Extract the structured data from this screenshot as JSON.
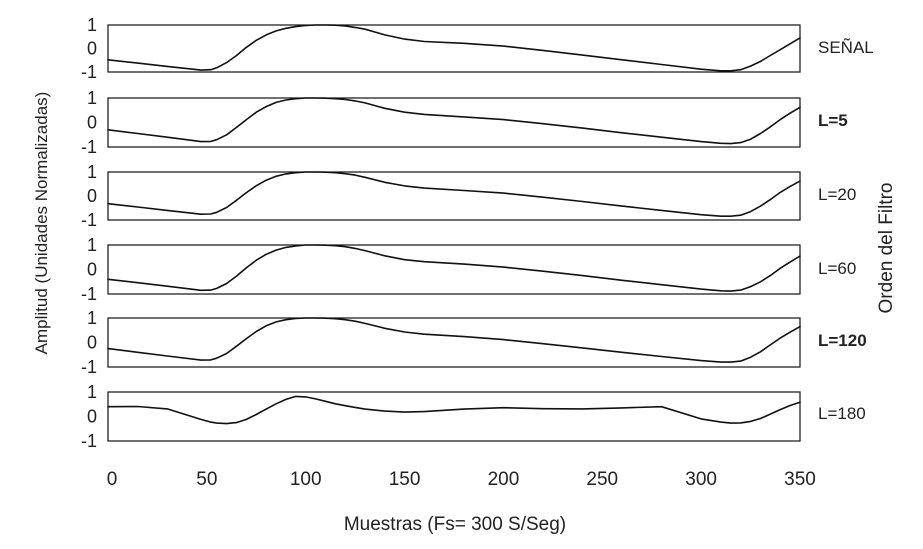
{
  "chart_data": {
    "type": "line",
    "xlabel": "Muestras (Fs= 300 S/Seg)",
    "ylabel": "Amplitud (Unidades Normalizadas)",
    "right_label": "Orden del Filtro",
    "xlim": [
      0,
      350
    ],
    "ylim": [
      -1,
      1
    ],
    "x_ticks": [
      0,
      50,
      100,
      150,
      200,
      250,
      300,
      350
    ],
    "x_tick_labels": [
      "0",
      "50",
      "100",
      "150",
      "200",
      "250",
      "300",
      "350"
    ],
    "y_tick_labels": [
      "1",
      "0",
      "-1"
    ],
    "grid": false,
    "line_color": "#111111",
    "x": [
      0,
      15,
      30,
      47,
      52,
      55,
      60,
      65,
      70,
      75,
      80,
      85,
      90,
      95,
      100,
      105,
      110,
      115,
      120,
      125,
      130,
      140,
      150,
      160,
      180,
      200,
      220,
      240,
      260,
      280,
      300,
      310,
      315,
      320,
      325,
      330,
      335,
      340,
      345,
      350
    ],
    "series": [
      {
        "name": "SEÑAL",
        "values": [
          -0.48,
          -0.62,
          -0.76,
          -0.92,
          -0.9,
          -0.82,
          -0.6,
          -0.3,
          0.05,
          0.35,
          0.58,
          0.75,
          0.86,
          0.93,
          0.98,
          1.0,
          1.0,
          0.99,
          0.96,
          0.9,
          0.82,
          0.58,
          0.4,
          0.3,
          0.22,
          0.1,
          -0.08,
          -0.28,
          -0.48,
          -0.68,
          -0.88,
          -0.95,
          -0.95,
          -0.9,
          -0.75,
          -0.55,
          -0.3,
          -0.05,
          0.2,
          0.45
        ]
      },
      {
        "name": "L=5",
        "values": [
          -0.3,
          -0.45,
          -0.6,
          -0.78,
          -0.77,
          -0.7,
          -0.5,
          -0.2,
          0.12,
          0.42,
          0.65,
          0.82,
          0.92,
          0.97,
          1.0,
          1.0,
          0.99,
          0.97,
          0.94,
          0.88,
          0.8,
          0.58,
          0.42,
          0.33,
          0.23,
          0.12,
          -0.05,
          -0.23,
          -0.42,
          -0.6,
          -0.78,
          -0.85,
          -0.86,
          -0.82,
          -0.68,
          -0.45,
          -0.18,
          0.12,
          0.38,
          0.62
        ]
      },
      {
        "name": "L=20",
        "values": [
          -0.32,
          -0.46,
          -0.6,
          -0.76,
          -0.75,
          -0.68,
          -0.48,
          -0.18,
          0.14,
          0.43,
          0.66,
          0.82,
          0.92,
          0.97,
          1.0,
          1.0,
          0.99,
          0.97,
          0.93,
          0.87,
          0.78,
          0.57,
          0.42,
          0.33,
          0.23,
          0.12,
          -0.05,
          -0.23,
          -0.42,
          -0.6,
          -0.78,
          -0.84,
          -0.84,
          -0.8,
          -0.65,
          -0.42,
          -0.15,
          0.15,
          0.4,
          0.62
        ]
      },
      {
        "name": "L=60",
        "values": [
          -0.4,
          -0.54,
          -0.68,
          -0.85,
          -0.84,
          -0.77,
          -0.57,
          -0.27,
          0.07,
          0.38,
          0.62,
          0.79,
          0.9,
          0.96,
          1.0,
          1.0,
          0.99,
          0.97,
          0.93,
          0.86,
          0.77,
          0.56,
          0.4,
          0.32,
          0.22,
          0.1,
          -0.07,
          -0.25,
          -0.44,
          -0.62,
          -0.8,
          -0.87,
          -0.88,
          -0.84,
          -0.7,
          -0.5,
          -0.25,
          0.05,
          0.3,
          0.55
        ]
      },
      {
        "name": "L=120",
        "values": [
          -0.25,
          -0.4,
          -0.55,
          -0.72,
          -0.71,
          -0.64,
          -0.45,
          -0.15,
          0.16,
          0.45,
          0.68,
          0.84,
          0.93,
          0.98,
          1.0,
          1.0,
          0.99,
          0.97,
          0.93,
          0.87,
          0.78,
          0.58,
          0.43,
          0.34,
          0.24,
          0.12,
          -0.05,
          -0.22,
          -0.4,
          -0.57,
          -0.74,
          -0.8,
          -0.8,
          -0.76,
          -0.6,
          -0.38,
          -0.1,
          0.18,
          0.42,
          0.65
        ]
      },
      {
        "name": "L=180",
        "values": [
          0.4,
          0.41,
          0.31,
          -0.12,
          -0.23,
          -0.27,
          -0.29,
          -0.25,
          -0.12,
          0.08,
          0.3,
          0.52,
          0.7,
          0.82,
          0.8,
          0.72,
          0.62,
          0.52,
          0.44,
          0.37,
          0.3,
          0.22,
          0.18,
          0.2,
          0.3,
          0.36,
          0.32,
          0.31,
          0.35,
          0.4,
          -0.1,
          -0.23,
          -0.27,
          -0.26,
          -0.2,
          -0.08,
          0.1,
          0.28,
          0.45,
          0.58
        ]
      }
    ]
  }
}
